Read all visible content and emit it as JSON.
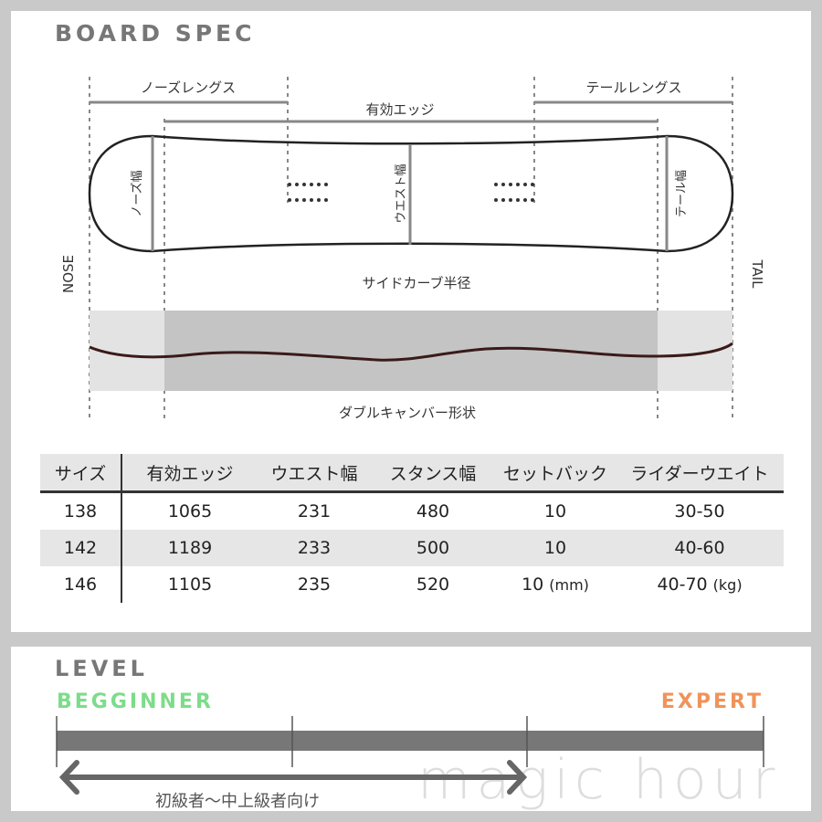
{
  "spec": {
    "title": "BOARD SPEC",
    "labels": {
      "nose_length": "ノーズレングス",
      "tail_length": "テールレングス",
      "effective_edge": "有効エッジ",
      "nose_width": "ノーズ幅",
      "waist_width": "ウエスト幅",
      "tail_width": "テール幅",
      "sidecut_radius": "サイドカーブ半径",
      "nose": "NOSE",
      "tail": "TAIL",
      "profile": "ダブルキャンバー形状"
    },
    "colors": {
      "outline": "#222222",
      "profile_line": "#3a1a1a",
      "band_light": "#e3e3e3",
      "band_dark": "#c4c4c4"
    }
  },
  "table": {
    "headers": [
      "サイズ",
      "有効エッジ",
      "ウエスト幅",
      "スタンス幅",
      "セットバック",
      "ライダーウエイト"
    ],
    "rows": [
      [
        "138",
        "1065",
        "231",
        "480",
        "10",
        "30-50"
      ],
      [
        "142",
        "1189",
        "233",
        "500",
        "10",
        "40-60"
      ],
      [
        "146",
        "1105",
        "235",
        "520",
        "10",
        "40-70"
      ]
    ],
    "units": {
      "setback": "(mm)",
      "weight": "(kg)"
    }
  },
  "level": {
    "title": "LEVEL",
    "beginner": "BEGGINNER",
    "expert": "EXPERT",
    "range_label": "初級者〜中上級者向け",
    "range_fraction": [
      0,
      0.67
    ],
    "watermark": "magic hour",
    "colors": {
      "beginner": "#7ddc8a",
      "expert": "#f0935a",
      "bar": "#777777"
    }
  }
}
